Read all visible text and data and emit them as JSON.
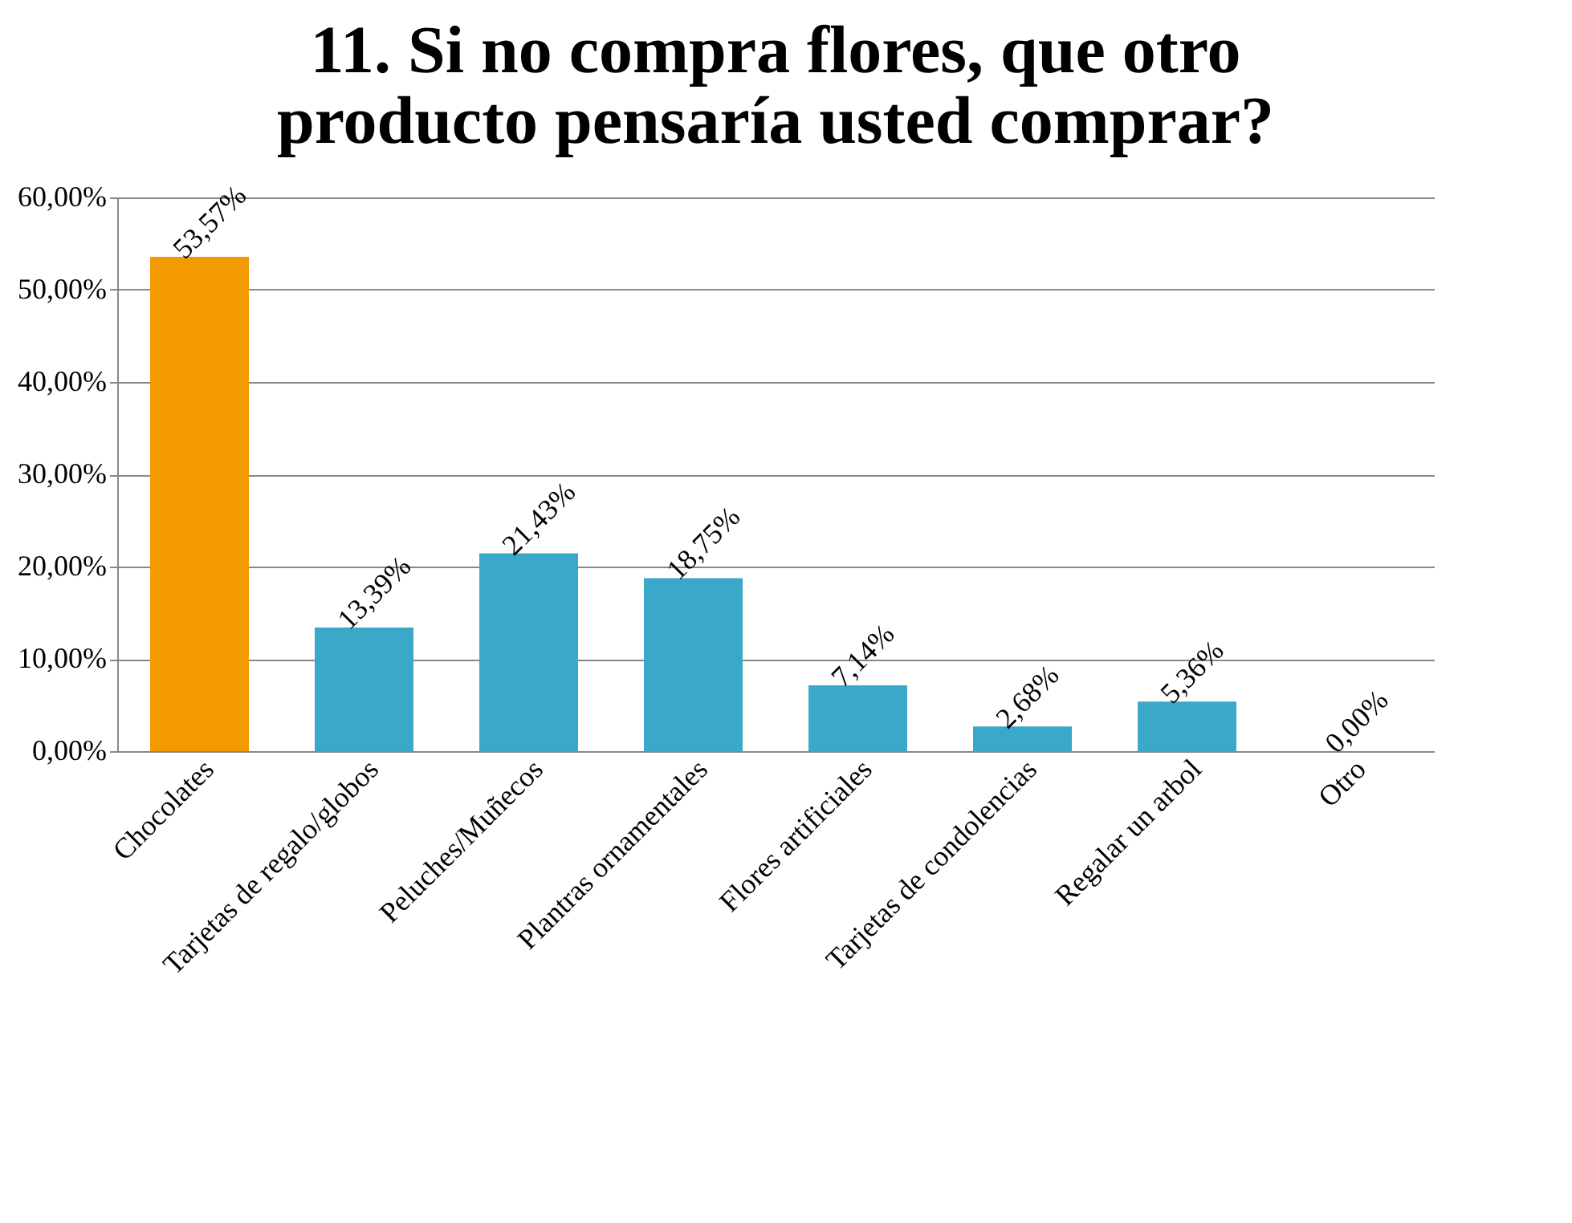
{
  "chart_data": {
    "type": "bar",
    "title": "11. Si no compra flores, que otro producto pensaría usted comprar?",
    "categories": [
      "Chocolates",
      "Tarjetas de regalo/globos",
      "Peluches/Muñecos",
      "Plantras ornamentales",
      "Flores artificiales",
      "Tarjetas de condolencias",
      "Regalar un arbol",
      "Otro"
    ],
    "values": [
      53.57,
      13.39,
      21.43,
      18.75,
      7.14,
      2.68,
      5.36,
      0.0
    ],
    "value_labels": [
      "53,57%",
      "13,39%",
      "21,43%",
      "18,75%",
      "7,14%",
      "2,68%",
      "5,36%",
      "0,00%"
    ],
    "colors": [
      "#f39a00",
      "#3aa8c8",
      "#3aa8c8",
      "#3aa8c8",
      "#3aa8c8",
      "#3aa8c8",
      "#3aa8c8",
      "#3aa8c8"
    ],
    "ylim": [
      0,
      60
    ],
    "yticks": [
      {
        "value": 0,
        "label": "0,00%"
      },
      {
        "value": 10,
        "label": "10,00%"
      },
      {
        "value": 20,
        "label": "20,00%"
      },
      {
        "value": 30,
        "label": "30,00%"
      },
      {
        "value": 40,
        "label": "40,00%"
      },
      {
        "value": 50,
        "label": "50,00%"
      },
      {
        "value": 60,
        "label": "60,00%"
      }
    ],
    "grid": "y"
  }
}
